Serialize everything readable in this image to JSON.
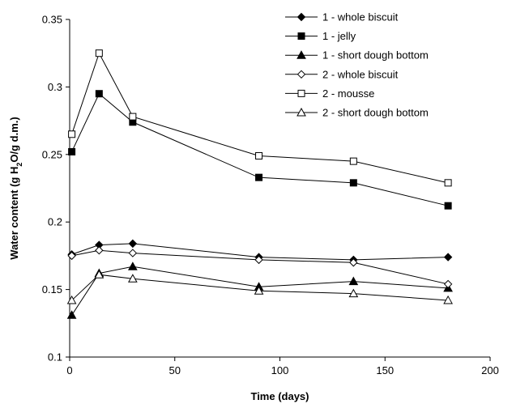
{
  "chart_data": {
    "type": "line",
    "xlabel": "Time (days)",
    "ylabel_parts": [
      "Water content (g H",
      "2",
      "O/g d.m.)"
    ],
    "xlim": [
      0,
      200
    ],
    "ylim": [
      0.1,
      0.35
    ],
    "x_ticks": [
      0,
      50,
      100,
      150,
      200
    ],
    "y_ticks": [
      0.1,
      0.15,
      0.2,
      0.25,
      0.3,
      0.35
    ],
    "x_tick_labels": [
      "0",
      "50",
      "100",
      "150",
      "200"
    ],
    "y_tick_labels": [
      "0.1",
      "0.15",
      "0.2",
      "0.25",
      "0.3",
      "0.35"
    ],
    "grid": false,
    "legend_position": "top-right",
    "x": [
      1,
      14,
      30,
      90,
      135,
      180
    ],
    "series": [
      {
        "name": "1 - whole biscuit",
        "marker": "diamond",
        "filled": true,
        "values": [
          0.176,
          0.183,
          0.184,
          0.174,
          0.172,
          0.174
        ]
      },
      {
        "name": "1 - jelly",
        "marker": "square",
        "filled": true,
        "values": [
          0.252,
          0.295,
          0.274,
          0.233,
          0.229,
          0.212
        ]
      },
      {
        "name": "1 - short dough bottom",
        "marker": "triangle",
        "filled": true,
        "values": [
          0.131,
          0.162,
          0.167,
          0.152,
          0.156,
          0.151
        ]
      },
      {
        "name": "2 - whole biscuit",
        "marker": "diamond",
        "filled": false,
        "values": [
          0.175,
          0.179,
          0.177,
          0.172,
          0.17,
          0.154
        ]
      },
      {
        "name": "2 - mousse",
        "marker": "square",
        "filled": false,
        "values": [
          0.265,
          0.325,
          0.278,
          0.249,
          0.245,
          0.229
        ]
      },
      {
        "name": "2 - short dough bottom",
        "marker": "triangle",
        "filled": false,
        "values": [
          0.142,
          0.161,
          0.158,
          0.149,
          0.147,
          0.142
        ]
      }
    ]
  }
}
